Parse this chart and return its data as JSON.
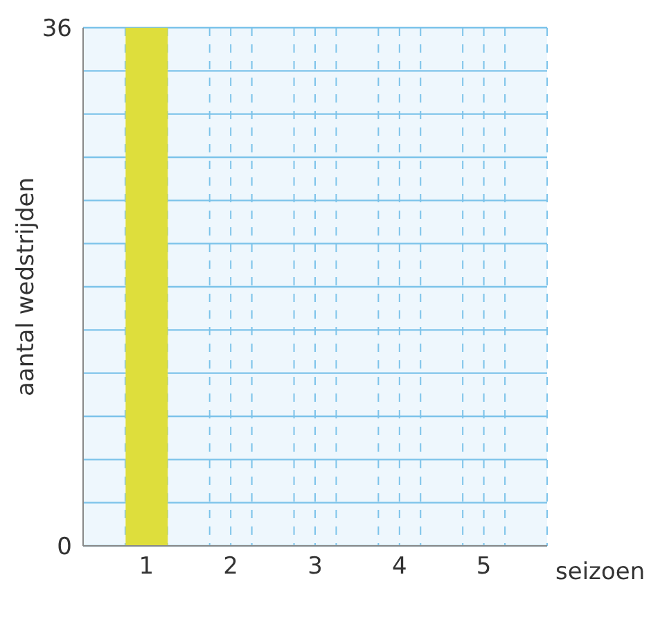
{
  "chart_data": {
    "type": "bar",
    "xlabel": "seizoen",
    "ylabel": "aantal wedstrijden",
    "x": [
      1
    ],
    "values": [
      36
    ],
    "color": "#dede3c",
    "xlim": [
      0.25,
      5.75
    ],
    "ylim": [
      0,
      36
    ],
    "xticks": [
      {
        "value": 0.75,
        "label": null
      },
      1,
      {
        "value": 1.25,
        "label": null
      },
      {
        "value": 1.75,
        "label": null
      },
      2,
      {
        "value": 2.25,
        "label": null
      },
      {
        "value": 2.75,
        "label": null
      },
      3,
      {
        "value": 3.25,
        "label": null
      },
      {
        "value": 3.75,
        "label": null
      },
      4,
      {
        "value": 4.25,
        "label": null
      },
      {
        "value": 4.75,
        "label": null
      },
      5,
      {
        "value": 5.25,
        "label": null
      }
    ],
    "yticks": [
      0,
      {
        "value": 3,
        "label": null
      },
      {
        "value": 6,
        "label": null
      },
      {
        "value": 9,
        "label": null
      },
      {
        "value": 12,
        "label": null
      },
      {
        "value": 15,
        "label": null
      },
      {
        "value": 18,
        "label": null
      },
      {
        "value": 21,
        "label": null
      },
      {
        "value": 24,
        "label": null
      },
      {
        "value": 27,
        "label": null
      },
      {
        "value": 30,
        "label": null
      },
      {
        "value": 33,
        "label": null
      },
      36
    ],
    "grid": true
  }
}
